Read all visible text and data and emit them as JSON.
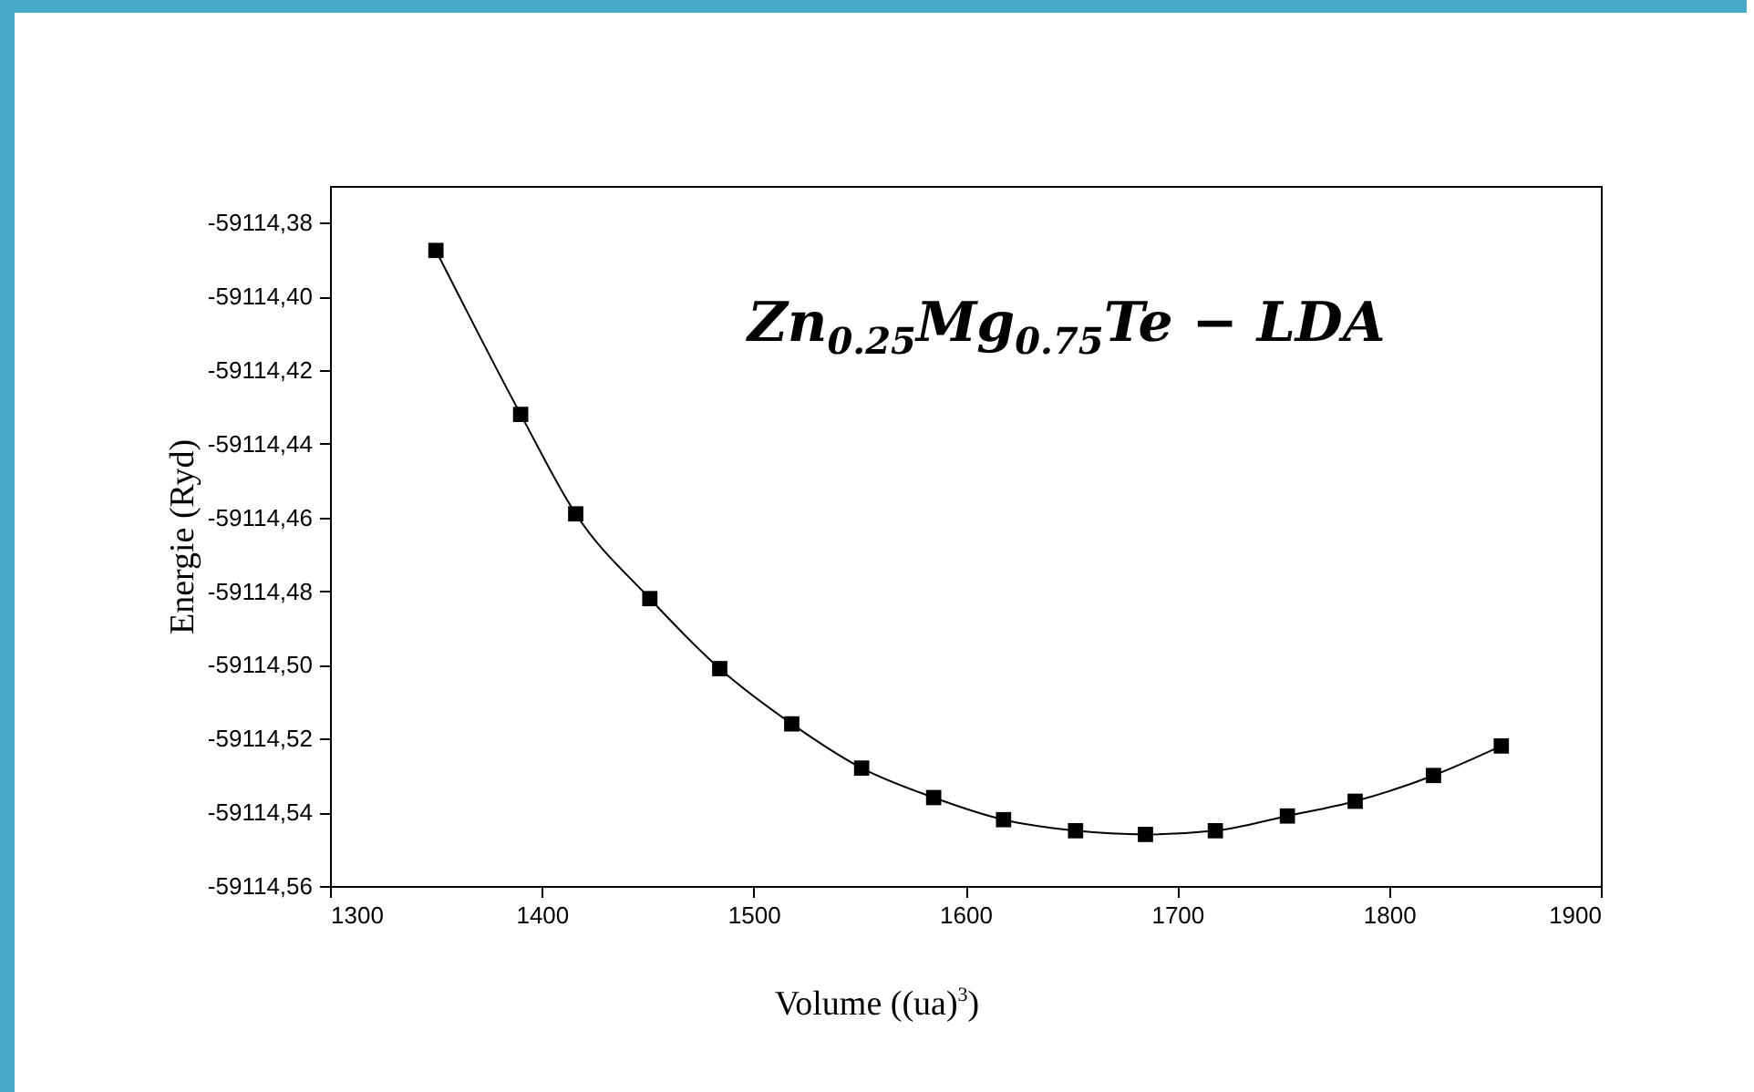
{
  "chart_data": {
    "type": "line",
    "xlabel": "Volume ((ua)$^{3}$)",
    "ylabel": "Energie (Ryd)",
    "annotations": [
      "Zn$_{0.25}$Mg$_{0.75}$Te − LDA"
    ],
    "x": [
      1350,
      1390,
      1416,
      1451,
      1484,
      1518,
      1551,
      1585,
      1618,
      1652,
      1685,
      1718,
      1752,
      1784,
      1821,
      1853
    ],
    "series": [
      {
        "color": "#000000",
        "values": [
          -59114.3875,
          -59114.432,
          -59114.459,
          -59114.482,
          -59114.501,
          -59114.516,
          -59114.528,
          -59114.536,
          -59114.542,
          -59114.545,
          -59114.546,
          -59114.545,
          -59114.541,
          -59114.537,
          -59114.53,
          -59114.522
        ]
      }
    ],
    "xlim": [
      1300,
      1900
    ],
    "xticks": [
      1300,
      1400,
      1500,
      1600,
      1700,
      1800,
      1900
    ],
    "ylim": [
      -59114.56,
      -59114.37
    ],
    "yticks": [
      {
        "value": -59114.56,
        "label": "-59114,56"
      },
      {
        "value": -59114.54,
        "label": "-59114,54"
      },
      {
        "value": -59114.52,
        "label": "-59114,52"
      },
      {
        "value": -59114.5,
        "label": "-59114,50"
      },
      {
        "value": -59114.48,
        "label": "-59114,48"
      },
      {
        "value": -59114.46,
        "label": "-59114,46"
      },
      {
        "value": -59114.44,
        "label": "-59114,44"
      },
      {
        "value": -59114.42,
        "label": "-59114,42"
      },
      {
        "value": -59114.4,
        "label": "-59114,40"
      },
      {
        "value": -59114.38,
        "label": "-59114,38"
      }
    ],
    "marker": "square",
    "line_style": "solid"
  }
}
